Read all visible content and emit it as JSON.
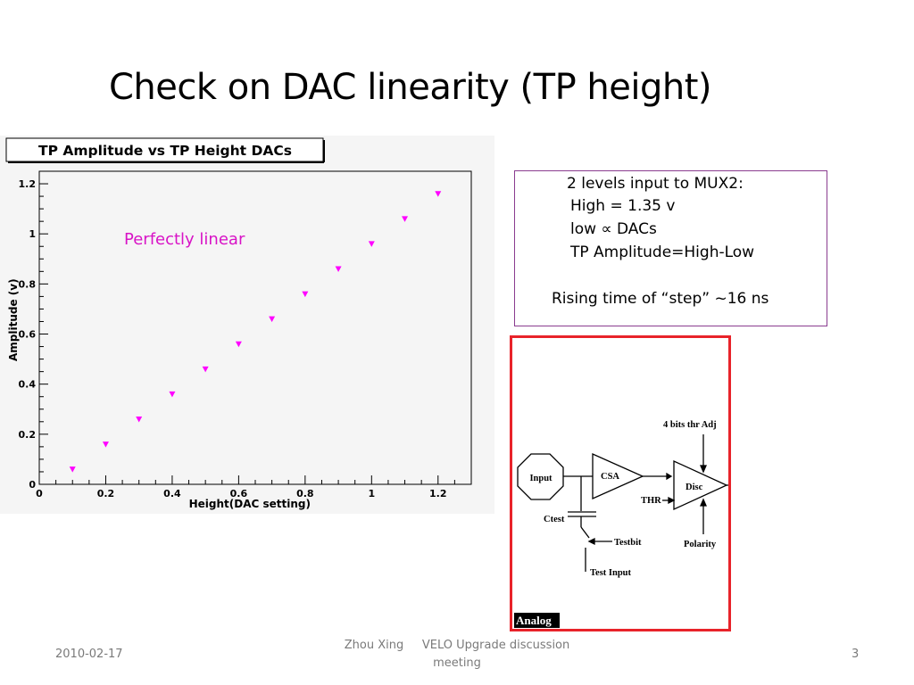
{
  "slide": {
    "title": "Check on DAC linearity (TP height)",
    "annotation": "Perfectly linear",
    "footer": {
      "date": "2010-02-17",
      "author": "Zhou Xing",
      "event_line1": "VELO Upgrade discussion",
      "event_line2": "meeting",
      "page": "3"
    }
  },
  "info_box": {
    "line1": "2 levels input  to MUX2:",
    "line2": "High =  1.35 v",
    "line3": "low  ∝ DACs",
    "line4": "TP Amplitude=High-Low",
    "line5": "Rising time of “step” ~16 ns"
  },
  "chart_data": {
    "type": "scatter",
    "title": "TP Amplitude vs TP Height DACs",
    "xlabel": "Height(DAC setting)",
    "ylabel": "Amplitude (v)",
    "xlim": [
      0,
      1.3
    ],
    "ylim": [
      0,
      1.25
    ],
    "xticks": [
      "0",
      "0.2",
      "0.4",
      "0.6",
      "0.8",
      "1",
      "1.2"
    ],
    "yticks": [
      "0",
      "0.2",
      "0.4",
      "0.6",
      "0.8",
      "1",
      "1.2"
    ],
    "marker": "downward-triangle",
    "marker_color": "#ff00ff",
    "series": [
      {
        "x": [
          0.1,
          0.2,
          0.3,
          0.4,
          0.5,
          0.6,
          0.7,
          0.8,
          0.9,
          1.0,
          1.1,
          1.2
        ],
        "y": [
          0.06,
          0.16,
          0.26,
          0.36,
          0.46,
          0.56,
          0.66,
          0.76,
          0.86,
          0.96,
          1.06,
          1.16
        ]
      }
    ]
  },
  "circuit": {
    "label_input": "Input",
    "label_csa": "CSA",
    "label_disc": "Disc",
    "label_thr_adj": "4 bits thr Adj",
    "label_thr": "THR",
    "label_ctest": "Ctest",
    "label_testbit": "Testbit",
    "label_test_input": "Test Input",
    "label_polarity": "Polarity",
    "label_analog": "Analog"
  }
}
